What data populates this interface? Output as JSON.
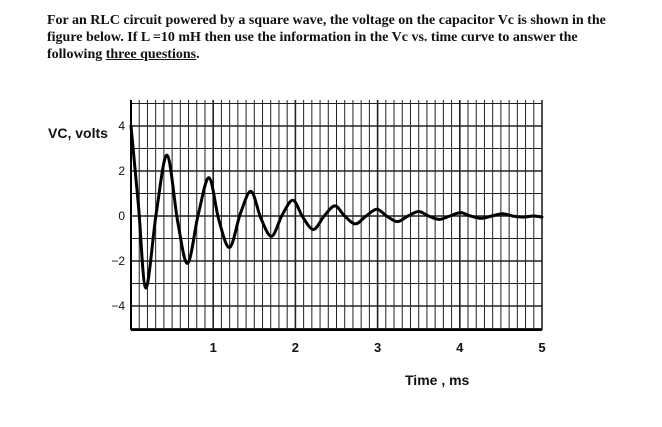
{
  "question": {
    "part1": "For an RLC circuit powered by a square wave, the voltage on the capacitor Vc is shown in the figure below. If L =10 mH then use the information in the Vc vs. time curve to answer the following ",
    "underlined": "three questions",
    "part2": "."
  },
  "chart_data": {
    "type": "line",
    "title": "",
    "xlabel": "Time , ms",
    "ylabel": "VC, volts",
    "xlim": [
      0,
      5
    ],
    "ylim": [
      -5,
      5
    ],
    "x_ticks": [
      1,
      2,
      3,
      4,
      5
    ],
    "y_ticks": [
      4,
      2,
      0,
      -2,
      -4
    ],
    "grid": "on",
    "curve": "damped oscillation starting at 4 V",
    "series": [
      {
        "values_desc": "Vc vs time",
        "x": [
          0,
          0.09,
          0.18,
          0.31,
          0.44,
          0.57,
          0.69,
          0.82,
          0.95,
          1.07,
          1.2,
          1.33,
          1.46,
          1.58,
          1.71,
          1.84,
          1.97,
          2.09,
          2.22,
          2.35,
          2.48,
          2.6,
          2.73,
          2.86,
          2.99,
          3.11,
          3.24,
          3.37,
          3.5,
          3.62,
          3.75,
          3.88,
          4.01,
          4.13,
          4.26,
          4.39,
          4.52,
          4.64,
          4.77,
          4.9,
          5.0
        ],
        "y": [
          4.0,
          0.5,
          -3.2,
          0.2,
          2.7,
          -0.3,
          -2.1,
          0.1,
          1.7,
          -0.2,
          -1.4,
          0.1,
          1.1,
          -0.1,
          -0.9,
          0.05,
          0.7,
          -0.05,
          -0.6,
          0.0,
          0.45,
          0.0,
          -0.35,
          0.0,
          0.3,
          0.0,
          -0.25,
          0.0,
          0.2,
          0.0,
          -0.15,
          0.0,
          0.15,
          0.0,
          -0.1,
          0.0,
          0.1,
          0.0,
          -0.05,
          0.0,
          -0.05
        ]
      }
    ]
  }
}
